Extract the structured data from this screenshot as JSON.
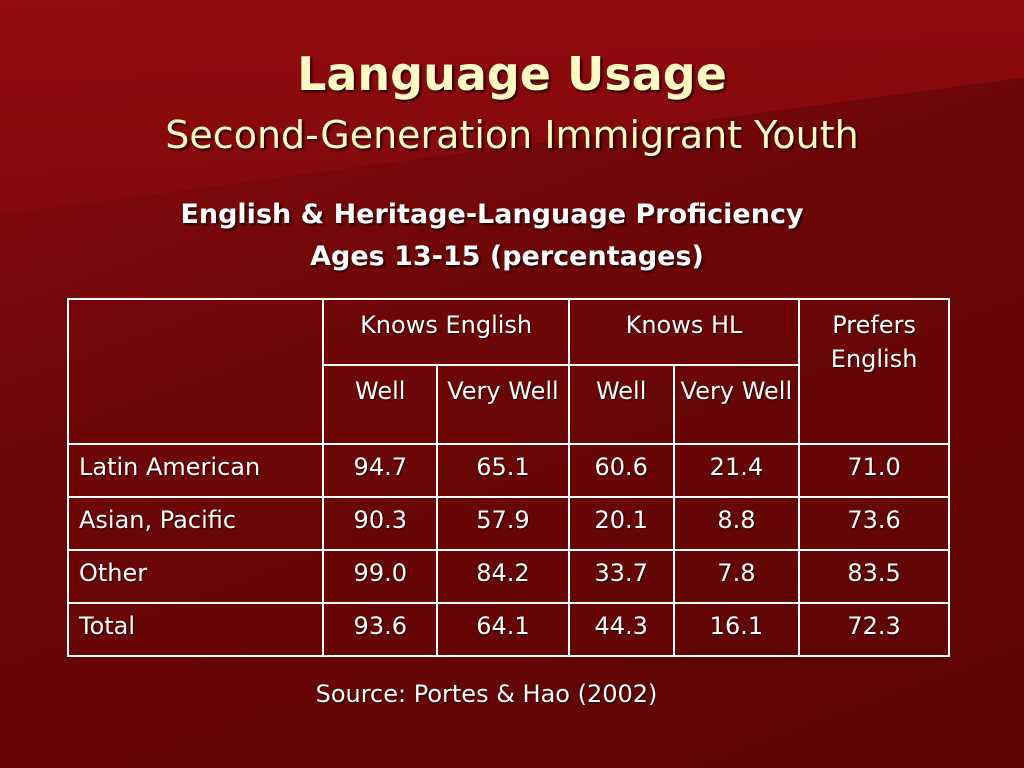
{
  "slide": {
    "title": "Language Usage",
    "subtitle": "Second-Generation Immigrant Youth",
    "heading_line1": "English & Heritage-Language Proficiency",
    "heading_line2": "Ages 13-15 (percentages)",
    "source": "Source: Portes & Hao (2002)"
  },
  "table": {
    "groups": {
      "knows_english": "Knows English",
      "knows_hl": "Knows HL",
      "prefers_english": "Prefers English"
    },
    "subheaders": {
      "well": "Well",
      "very_well": "Very Well"
    },
    "rows": [
      {
        "label": "Latin American",
        "eng_well": "94.7",
        "eng_very_well": "65.1",
        "hl_well": "60.6",
        "hl_very_well": "21.4",
        "prefers": "71.0"
      },
      {
        "label": "Asian, Pacific",
        "eng_well": "90.3",
        "eng_very_well": "57.9",
        "hl_well": "20.1",
        "hl_very_well": "8.8",
        "prefers": "73.6"
      },
      {
        "label": "Other",
        "eng_well": "99.0",
        "eng_very_well": "84.2",
        "hl_well": "33.7",
        "hl_very_well": "7.8",
        "prefers": "83.5"
      },
      {
        "label": "Total",
        "eng_well": "93.6",
        "eng_very_well": "64.1",
        "hl_well": "44.3",
        "hl_very_well": "16.1",
        "prefers": "72.3"
      }
    ]
  },
  "colors": {
    "background": "#6e0608",
    "title_text": "#fff9c4",
    "body_text": "#ffffff",
    "table_border": "#ffffff"
  }
}
